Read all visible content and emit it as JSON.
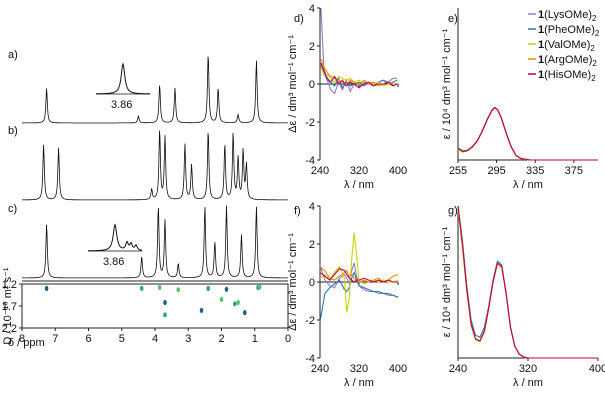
{
  "panel_labels": {
    "a": "a)",
    "b": "b)",
    "c": "c)",
    "d": "d)",
    "e": "e)",
    "f": "f)",
    "g": "g)"
  },
  "inset_labels": {
    "a": "3.86",
    "c": "3.86"
  },
  "colors": {
    "LysOMe": "#8e7cc3",
    "PheOMe": "#2e75b6",
    "ValOMe": "#c9d400",
    "ArgOMe": "#f08a00",
    "HisOMe": "#c00050",
    "nmr": "#111111",
    "dosy": [
      "#1f5f8b",
      "#2aa198",
      "#5cc26b"
    ]
  },
  "chart_data": [
    {
      "id": "nmr",
      "type": "line",
      "title": "",
      "xlabel": "δ / ppm",
      "ylabel": "",
      "xlim": [
        8,
        0
      ],
      "xticks": [
        8,
        7,
        6,
        5,
        4,
        3,
        2,
        1,
        0
      ],
      "traces": [
        {
          "panel": "a",
          "peaks": [
            [
              7.26,
              0.5
            ],
            [
              4.5,
              0.1
            ],
            [
              3.86,
              0.55
            ],
            [
              3.4,
              0.5
            ],
            [
              2.4,
              1.0
            ],
            [
              2.1,
              0.5
            ],
            [
              1.5,
              0.12
            ],
            [
              0.95,
              0.9
            ]
          ]
        },
        {
          "panel": "b",
          "peaks": [
            [
              7.35,
              0.8
            ],
            [
              6.9,
              0.75
            ],
            [
              4.1,
              0.15
            ],
            [
              3.86,
              1.0
            ],
            [
              3.7,
              0.9
            ],
            [
              3.1,
              0.8
            ],
            [
              2.9,
              0.5
            ],
            [
              2.4,
              1.0
            ],
            [
              1.9,
              0.8
            ],
            [
              1.65,
              0.95
            ],
            [
              1.5,
              0.6
            ],
            [
              1.35,
              0.7
            ],
            [
              1.25,
              0.5
            ]
          ]
        },
        {
          "panel": "c",
          "peaks": [
            [
              7.26,
              0.75
            ],
            [
              4.4,
              0.3
            ],
            [
              3.9,
              1.0
            ],
            [
              3.7,
              0.8
            ],
            [
              3.3,
              0.2
            ],
            [
              2.5,
              1.0
            ],
            [
              2.2,
              0.5
            ],
            [
              1.85,
              1.0
            ],
            [
              1.4,
              0.6
            ],
            [
              0.95,
              1.0
            ]
          ]
        }
      ]
    },
    {
      "id": "dosy",
      "type": "scatter",
      "title": "",
      "xlabel": "δ / ppm",
      "ylabel": "D / 10⁻¹⁰ m² s⁻¹",
      "xlim": [
        8,
        0
      ],
      "ylim": [
        1.2,
        2.2
      ],
      "yticks": [
        1.2,
        1.7,
        2.2
      ],
      "xticks": [
        8,
        7,
        6,
        5,
        4,
        3,
        2,
        1,
        0
      ],
      "points": [
        [
          7.26,
          1.3
        ],
        [
          4.4,
          1.3
        ],
        [
          3.86,
          1.28
        ],
        [
          3.7,
          1.62
        ],
        [
          3.7,
          1.9
        ],
        [
          3.3,
          1.33
        ],
        [
          2.6,
          1.8
        ],
        [
          2.4,
          1.3
        ],
        [
          2.0,
          1.55
        ],
        [
          1.85,
          1.32
        ],
        [
          1.6,
          1.65
        ],
        [
          1.5,
          1.62
        ],
        [
          1.3,
          1.85
        ],
        [
          0.9,
          1.28
        ],
        [
          0.85,
          1.27
        ]
      ]
    },
    {
      "id": "d",
      "type": "line",
      "title": "",
      "xlabel": "λ / nm",
      "ylabel": "Δε / dm³ mol⁻¹ cm⁻¹",
      "xlim": [
        240,
        400
      ],
      "ylim": [
        -4,
        4
      ],
      "xticks": [
        240,
        320,
        400
      ],
      "yticks": [
        -4,
        -2,
        0,
        2,
        4
      ],
      "x": [
        242,
        248,
        255,
        262,
        270,
        278,
        286,
        294,
        302,
        310,
        320,
        330,
        340,
        350,
        360,
        370,
        380,
        390,
        398
      ],
      "series": [
        {
          "key": "LysOMe",
          "values": [
            4.0,
            0.8,
            0.2,
            -0.3,
            -0.5,
            0.1,
            -0.3,
            0.2,
            -0.4,
            0.0,
            -0.2,
            0.1,
            0.0,
            -0.1,
            0.1,
            0.2,
            0.1,
            0.3,
            0.3
          ]
        },
        {
          "key": "PheOMe",
          "values": [
            1.0,
            0.6,
            0.2,
            0.1,
            -0.1,
            0.3,
            -0.2,
            0.1,
            -0.1,
            0.0,
            0.1,
            -0.1,
            0.1,
            0.0,
            0.1,
            0.2,
            0.0,
            0.1,
            0.2
          ]
        },
        {
          "key": "ValOMe",
          "values": [
            0.9,
            0.5,
            0.5,
            0.3,
            0.1,
            0.4,
            0.3,
            0.2,
            0.3,
            0.1,
            0.2,
            0.0,
            0.1,
            0.0,
            0.1,
            -0.1,
            0.0,
            -0.1,
            0.0
          ]
        },
        {
          "key": "ArgOMe",
          "values": [
            1.3,
            0.9,
            0.6,
            0.4,
            0.3,
            0.2,
            0.1,
            0.0,
            0.2,
            0.1,
            0.0,
            0.2,
            0.0,
            0.1,
            -0.1,
            0.0,
            0.1,
            0.0,
            0.0
          ]
        },
        {
          "key": "HisOMe",
          "values": [
            1.1,
            0.7,
            0.3,
            0.1,
            0.4,
            0.0,
            0.2,
            -0.1,
            0.1,
            0.0,
            -0.2,
            0.0,
            0.1,
            -0.1,
            0.0,
            0.0,
            0.1,
            -0.1,
            0.0
          ]
        }
      ]
    },
    {
      "id": "e",
      "type": "line",
      "title": "",
      "xlabel": "λ / nm",
      "ylabel": "ε / 10⁴ dm³ mol⁻¹ cm⁻¹",
      "xlim": [
        255,
        400
      ],
      "ylim": [
        0,
        4
      ],
      "xticks": [
        255,
        295,
        335,
        375
      ],
      "x": [
        255,
        260,
        265,
        270,
        275,
        280,
        285,
        290,
        293,
        296,
        300,
        305,
        310,
        315,
        320,
        330,
        340,
        360,
        380,
        400
      ],
      "series": [
        {
          "key": "LysOMe",
          "values": [
            0.3,
            0.22,
            0.25,
            0.35,
            0.5,
            0.75,
            1.05,
            1.3,
            1.38,
            1.32,
            1.1,
            0.7,
            0.35,
            0.12,
            0.04,
            0.0,
            0.0,
            0.0,
            0.0,
            0.0
          ]
        },
        {
          "key": "PheOMe",
          "values": [
            0.32,
            0.24,
            0.26,
            0.36,
            0.51,
            0.76,
            1.06,
            1.31,
            1.39,
            1.33,
            1.11,
            0.71,
            0.36,
            0.13,
            0.04,
            0.0,
            0.0,
            0.0,
            0.0,
            0.0
          ]
        },
        {
          "key": "ValOMe",
          "values": [
            0.28,
            0.21,
            0.24,
            0.34,
            0.49,
            0.74,
            1.04,
            1.29,
            1.37,
            1.31,
            1.09,
            0.69,
            0.34,
            0.12,
            0.03,
            0.0,
            0.0,
            0.0,
            0.0,
            0.0
          ]
        },
        {
          "key": "ArgOMe",
          "values": [
            0.3,
            0.23,
            0.25,
            0.35,
            0.5,
            0.75,
            1.05,
            1.3,
            1.38,
            1.32,
            1.1,
            0.7,
            0.35,
            0.12,
            0.04,
            0.0,
            0.0,
            0.0,
            0.0,
            0.0
          ]
        },
        {
          "key": "HisOMe",
          "values": [
            0.31,
            0.22,
            0.25,
            0.35,
            0.5,
            0.75,
            1.05,
            1.3,
            1.38,
            1.32,
            1.1,
            0.7,
            0.35,
            0.12,
            0.04,
            0.0,
            0.0,
            0.0,
            0.0,
            0.0
          ]
        }
      ],
      "legend": {
        "position": "top-right",
        "entries": [
          {
            "key": "LysOMe",
            "bold": "1",
            "text": "(LysOMe)",
            "sub": "2"
          },
          {
            "key": "PheOMe",
            "bold": "1",
            "text": "(PheOMe)",
            "sub": "2"
          },
          {
            "key": "ValOMe",
            "bold": "1",
            "text": "(ValOMe)",
            "sub": "2"
          },
          {
            "key": "ArgOMe",
            "bold": "1",
            "text": "(ArgOMe)",
            "sub": "2"
          },
          {
            "key": "HisOMe",
            "bold": "1",
            "text": "(HisOMe)",
            "sub": "2"
          }
        ]
      }
    },
    {
      "id": "f",
      "type": "line",
      "title": "",
      "xlabel": "λ / nm",
      "ylabel": "Δε / dm³ mol⁻¹ cm⁻¹",
      "xlim": [
        240,
        400
      ],
      "ylim": [
        -4,
        4
      ],
      "xticks": [
        240,
        320,
        400
      ],
      "yticks": [
        -4,
        -2,
        0,
        2,
        4
      ],
      "x": [
        240,
        250,
        260,
        270,
        280,
        290,
        295,
        300,
        305,
        310,
        315,
        320,
        330,
        340,
        350,
        360,
        370,
        380,
        390,
        400
      ],
      "series": [
        {
          "key": "LysOMe",
          "values": [
            0.9,
            0.1,
            -0.2,
            -0.3,
            0.2,
            0.4,
            0.2,
            -0.1,
            0.6,
            1.0,
            0.3,
            -0.2,
            -0.4,
            -0.5,
            -0.5,
            -0.6,
            -0.6,
            -0.7,
            -0.7,
            -0.8
          ]
        },
        {
          "key": "PheOMe",
          "values": [
            -2.1,
            -0.6,
            -0.3,
            -0.1,
            0.1,
            -0.4,
            -0.5,
            -0.3,
            0.2,
            0.5,
            0.1,
            -0.2,
            -0.3,
            -0.4,
            -0.5,
            -0.5,
            -0.6,
            -0.6,
            -0.7,
            -0.8
          ]
        },
        {
          "key": "ValOMe",
          "values": [
            0.2,
            0.4,
            0.1,
            0.5,
            0.8,
            0.2,
            -1.6,
            -0.8,
            1.2,
            2.6,
            1.4,
            0.1,
            -0.1,
            0.0,
            0.1,
            0.0,
            0.1,
            0.0,
            0.0,
            0.1
          ]
        },
        {
          "key": "ArgOMe",
          "values": [
            0.8,
            0.6,
            0.2,
            0.1,
            0.3,
            0.5,
            0.6,
            0.3,
            0.4,
            0.2,
            0.1,
            0.0,
            0.1,
            0.0,
            0.1,
            0.2,
            0.0,
            0.1,
            0.3,
            0.4
          ]
        },
        {
          "key": "HisOMe",
          "values": [
            0.5,
            0.3,
            0.1,
            0.4,
            0.7,
            0.6,
            0.4,
            0.2,
            0.1,
            0.0,
            0.1,
            0.1,
            0.2,
            0.1,
            0.0,
            0.1,
            0.0,
            0.1,
            0.0,
            0.0
          ]
        }
      ]
    },
    {
      "id": "g",
      "type": "line",
      "title": "",
      "xlabel": "λ / nm",
      "ylabel": "ε / 10⁴ dm³ mol⁻¹ cm⁻¹",
      "xlim": [
        240,
        400
      ],
      "ylim": [
        0,
        4
      ],
      "xticks": [
        240,
        320,
        400
      ],
      "x": [
        240,
        245,
        250,
        255,
        260,
        265,
        270,
        275,
        280,
        285,
        290,
        295,
        300,
        305,
        310,
        315,
        320,
        330,
        340,
        360,
        380,
        400
      ],
      "series": [
        {
          "key": "LysOMe",
          "values": [
            4.0,
            3.0,
            1.8,
            0.9,
            0.5,
            0.45,
            0.7,
            1.3,
            2.0,
            2.5,
            2.4,
            1.7,
            0.8,
            0.3,
            0.1,
            0.03,
            0.0,
            0.0,
            0.0,
            0.0,
            0.0,
            0.0
          ]
        },
        {
          "key": "PheOMe",
          "values": [
            4.0,
            3.1,
            1.9,
            1.0,
            0.6,
            0.55,
            0.8,
            1.35,
            2.05,
            2.55,
            2.45,
            1.72,
            0.82,
            0.3,
            0.1,
            0.03,
            0.0,
            0.0,
            0.0,
            0.0,
            0.0,
            0.0
          ]
        },
        {
          "key": "ValOMe",
          "values": [
            3.9,
            2.9,
            1.75,
            0.85,
            0.48,
            0.42,
            0.68,
            1.28,
            1.98,
            2.48,
            2.38,
            1.68,
            0.79,
            0.29,
            0.09,
            0.02,
            0.0,
            0.0,
            0.0,
            0.0,
            0.0,
            0.0
          ]
        },
        {
          "key": "ArgOMe",
          "values": [
            4.0,
            3.0,
            1.8,
            0.9,
            0.5,
            0.45,
            0.7,
            1.3,
            2.0,
            2.5,
            2.4,
            1.7,
            0.8,
            0.3,
            0.1,
            0.03,
            0.0,
            0.0,
            0.0,
            0.0,
            0.0,
            0.0
          ]
        },
        {
          "key": "HisOMe",
          "values": [
            4.0,
            3.0,
            1.8,
            0.9,
            0.5,
            0.45,
            0.7,
            1.3,
            2.0,
            2.5,
            2.4,
            1.7,
            0.8,
            0.3,
            0.1,
            0.03,
            0.0,
            0.0,
            0.0,
            0.0,
            0.0,
            0.0
          ]
        }
      ]
    }
  ]
}
